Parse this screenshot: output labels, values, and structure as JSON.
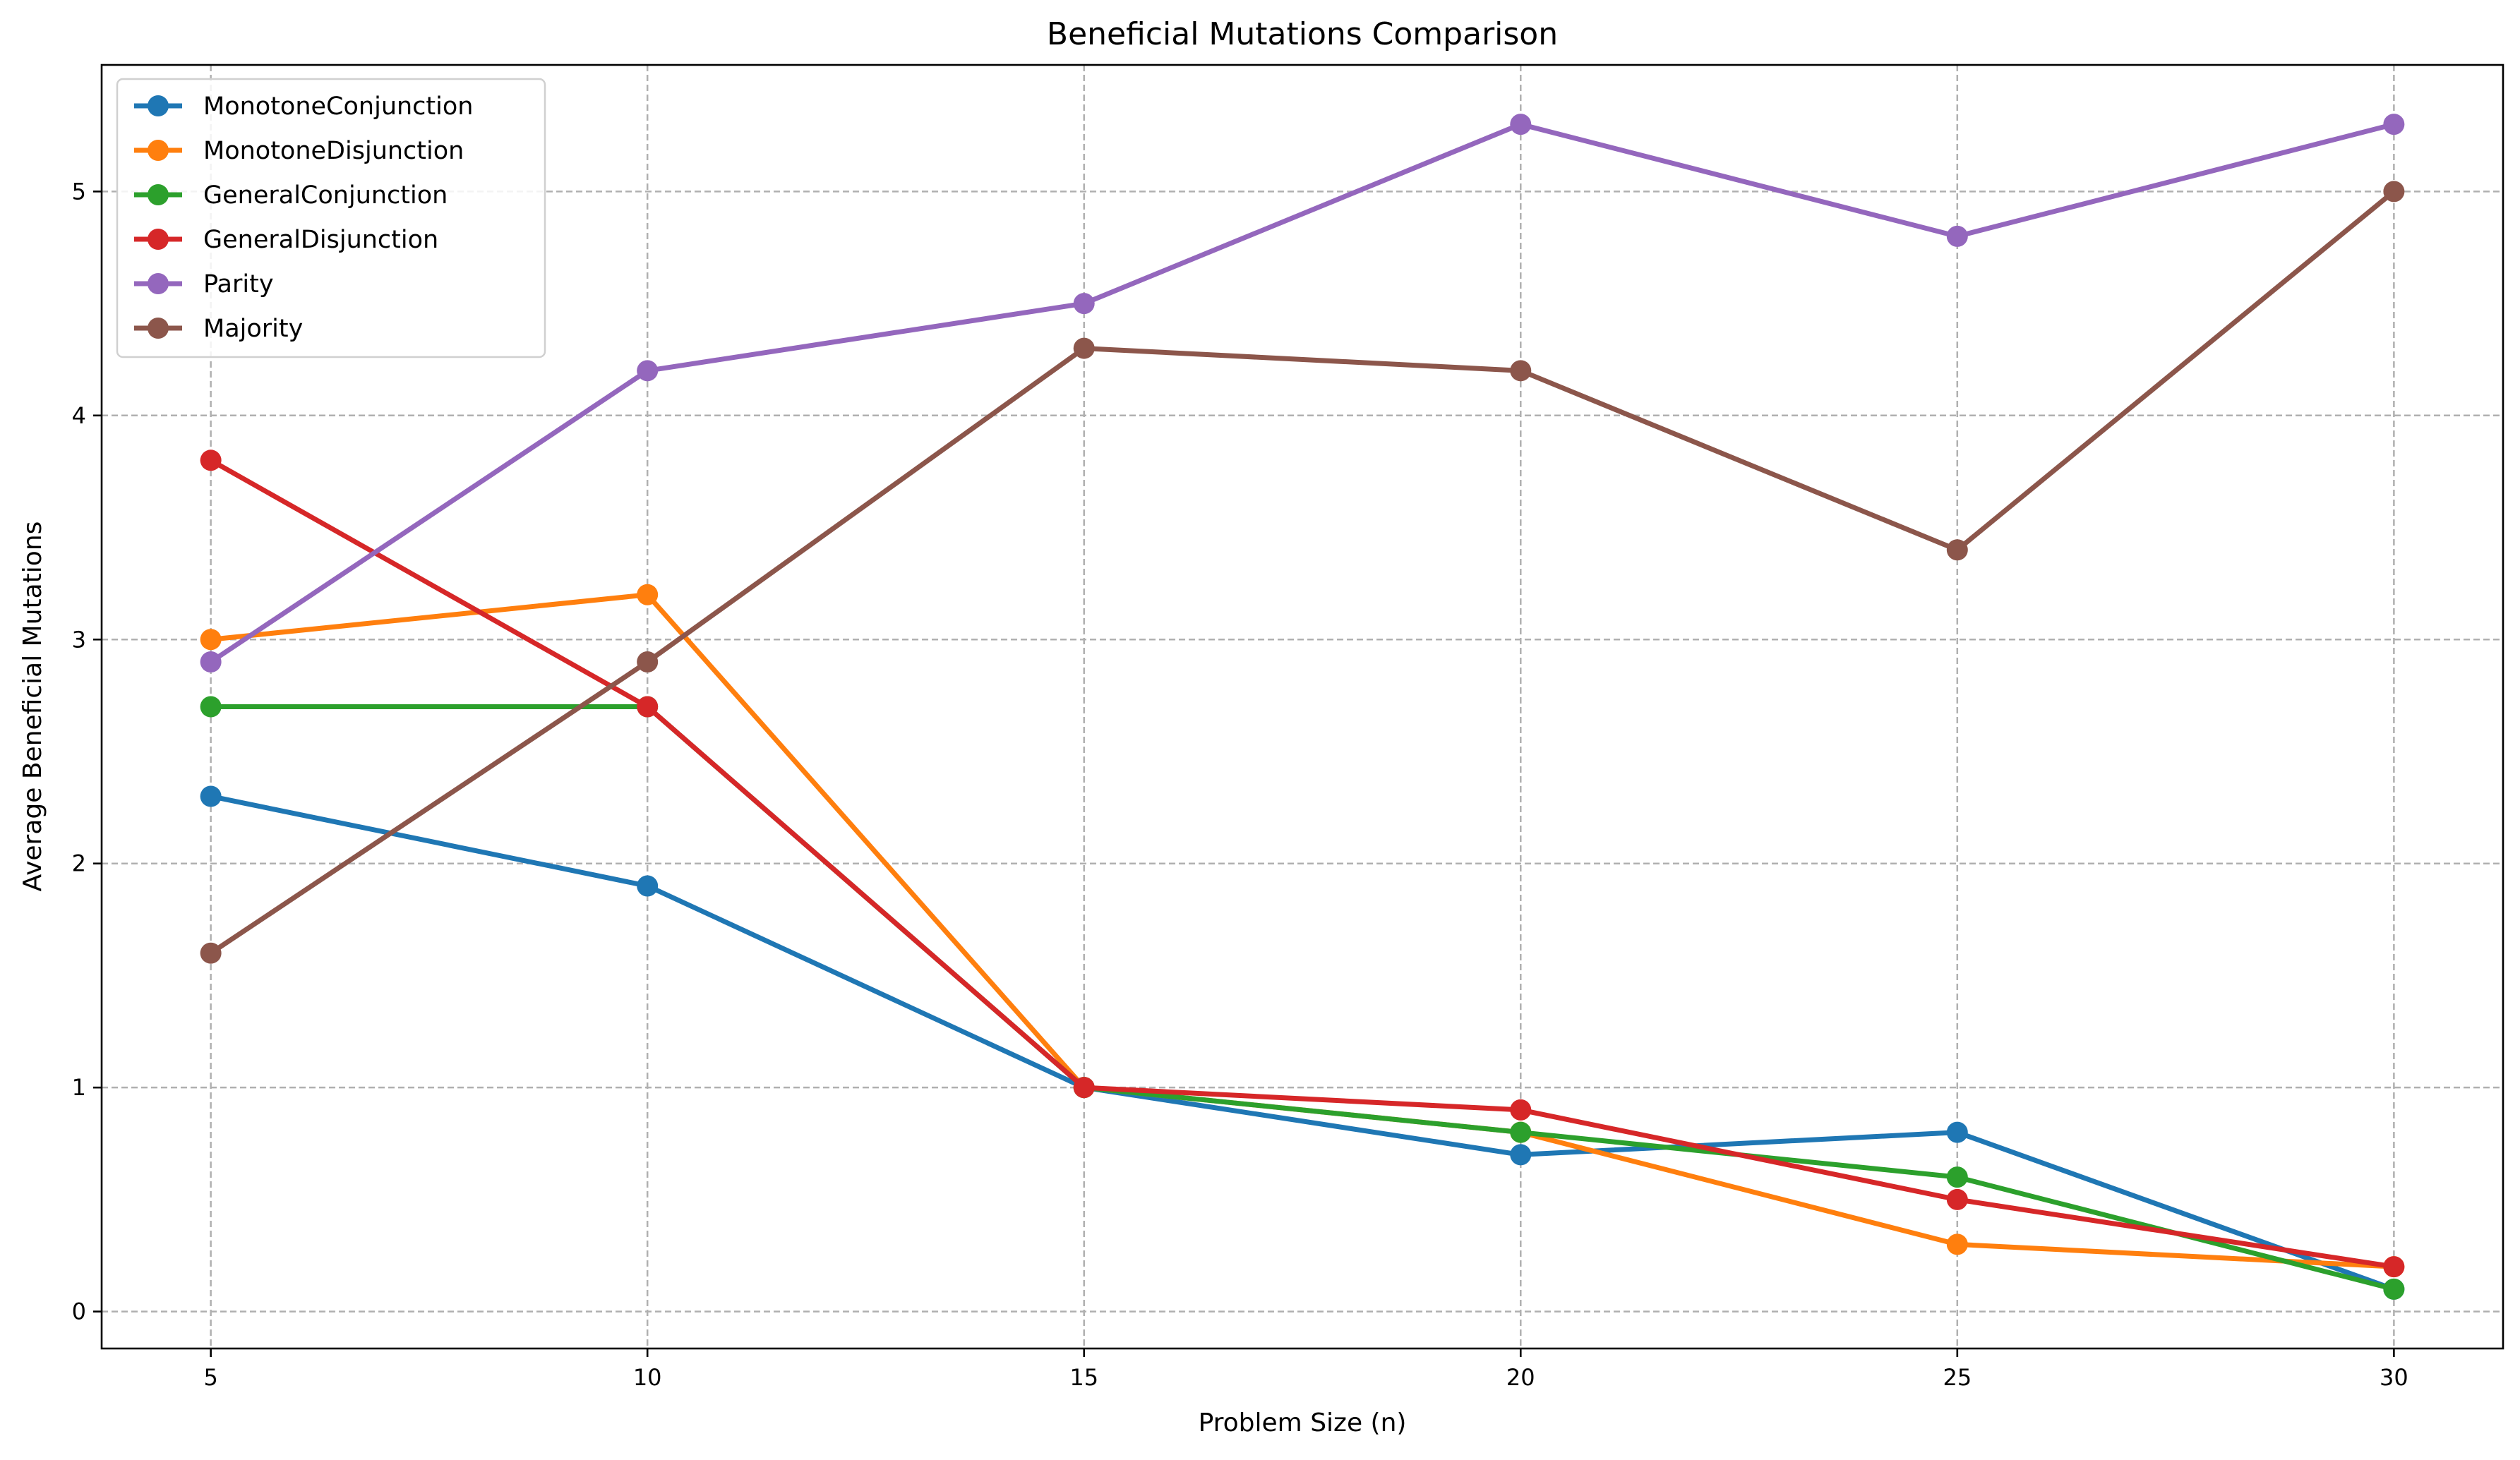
{
  "chart_data": {
    "type": "line",
    "title": "Beneficial Mutations Comparison",
    "xlabel": "Problem Size (n)",
    "ylabel": "Average Beneficial Mutations",
    "x": [
      5,
      10,
      15,
      20,
      25,
      30
    ],
    "xticks": [
      5,
      10,
      15,
      20,
      25,
      30
    ],
    "yticks": [
      0,
      1,
      2,
      3,
      4,
      5
    ],
    "xlim": [
      3.75,
      31.25
    ],
    "ylim": [
      -0.165,
      5.565
    ],
    "grid": true,
    "legend_position": "top-left",
    "series": [
      {
        "name": "MonotoneConjunction",
        "color": "#1f77b4",
        "values": [
          2.3,
          1.9,
          1.0,
          0.7,
          0.8,
          0.1
        ]
      },
      {
        "name": "MonotoneDisjunction",
        "color": "#ff7f0e",
        "values": [
          3.0,
          3.2,
          1.0,
          0.8,
          0.3,
          0.2
        ]
      },
      {
        "name": "GeneralConjunction",
        "color": "#2ca02c",
        "values": [
          2.7,
          2.7,
          1.0,
          0.8,
          0.6,
          0.1
        ]
      },
      {
        "name": "GeneralDisjunction",
        "color": "#d62728",
        "values": [
          3.8,
          2.7,
          1.0,
          0.9,
          0.5,
          0.2
        ]
      },
      {
        "name": "Parity",
        "color": "#9467bd",
        "values": [
          2.9,
          4.2,
          4.5,
          5.3,
          4.8,
          5.3
        ]
      },
      {
        "name": "Majority",
        "color": "#8c564b",
        "values": [
          1.6,
          2.9,
          4.3,
          4.2,
          3.4,
          5.0
        ]
      }
    ]
  }
}
